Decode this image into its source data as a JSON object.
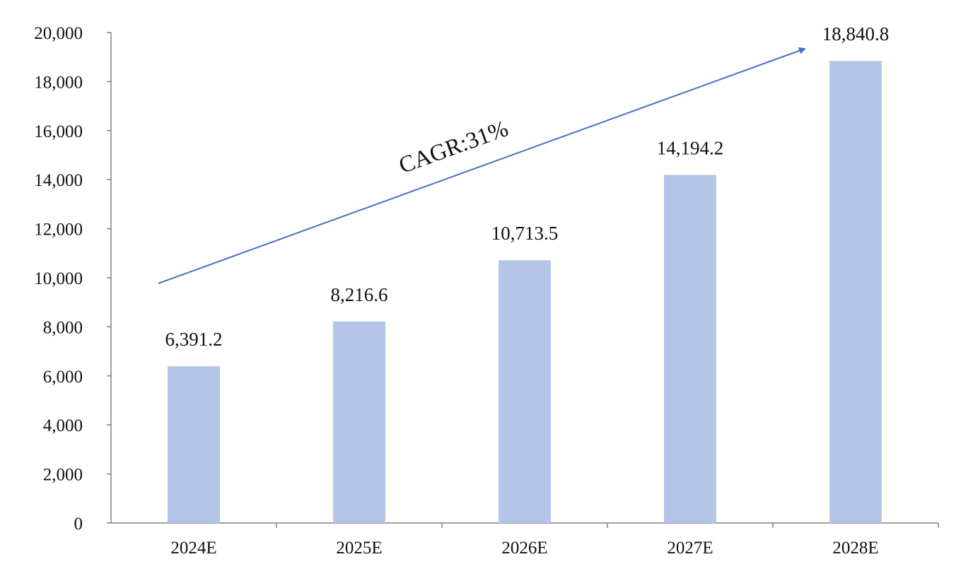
{
  "chart_data": {
    "type": "bar",
    "title": "",
    "xlabel": "",
    "ylabel": "",
    "categories": [
      "2024E",
      "2025E",
      "2026E",
      "2027E",
      "2028E"
    ],
    "values": [
      6391.2,
      8216.6,
      10713.5,
      14194.2,
      18840.8
    ],
    "value_labels": [
      "6,391.2",
      "8,216.6",
      "10,713.5",
      "14,194.2",
      "18,840.8"
    ],
    "ylim": [
      0,
      20000
    ],
    "yticks": [
      0,
      2000,
      4000,
      6000,
      8000,
      10000,
      12000,
      14000,
      16000,
      18000,
      20000
    ],
    "ytick_labels": [
      "0",
      "2,000",
      "4,000",
      "6,000",
      "8,000",
      "10,000",
      "12,000",
      "14,000",
      "16,000",
      "18,000",
      "20,000"
    ],
    "grid": false,
    "legend": "none",
    "annotation": {
      "text": "CAGR:31%",
      "arrow": true
    },
    "colors": {
      "bar": "#b4c6e7",
      "arrow": "#4472c4",
      "axis": "#808080"
    }
  }
}
